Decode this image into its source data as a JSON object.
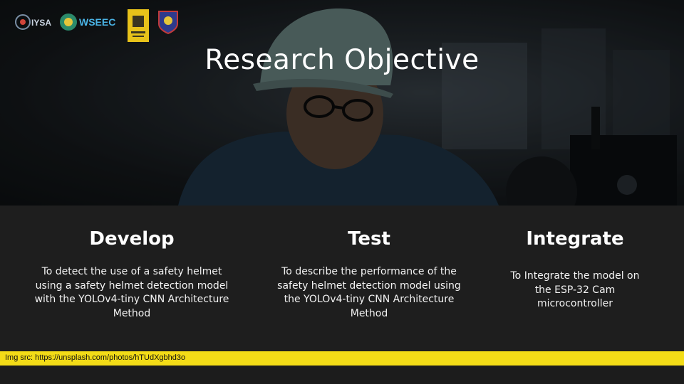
{
  "slide": {
    "title": "Research Objective",
    "logos": {
      "iysa": "IYSA",
      "wseec": "WSEEC"
    }
  },
  "objectives": [
    {
      "heading": "Develop",
      "text": "To detect the use of a safety helmet using a safety helmet detection model with the YOLOv4-tiny CNN Architecture Method"
    },
    {
      "heading": "Test",
      "text": "To describe the performance of the safety helmet detection model using the YOLOv4-tiny CNN Architecture Method"
    },
    {
      "heading": "Integrate",
      "text": "To Integrate the model on the ESP-32 Cam microcontroller"
    }
  ],
  "footer": {
    "credit": "Img src: https://unsplash.com/photos/hTUdXgbhd3o"
  },
  "colors": {
    "accent_yellow": "#f3dc17",
    "panel": "#1e1e1e",
    "text": "#ffffff"
  }
}
